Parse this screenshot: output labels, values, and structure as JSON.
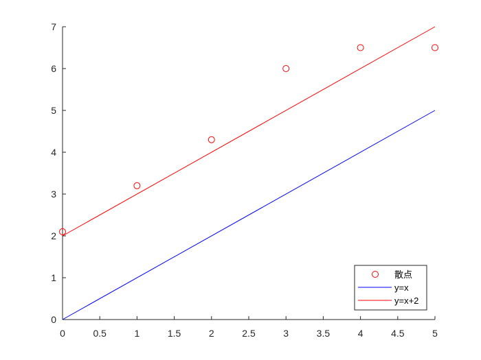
{
  "chart_data": {
    "type": "line",
    "title": "",
    "xlabel": "",
    "ylabel": "",
    "xlim": [
      0,
      5
    ],
    "ylim": [
      0,
      7
    ],
    "x_ticks": [
      "0",
      "0.5",
      "1",
      "1.5",
      "2",
      "2.5",
      "3",
      "3.5",
      "4",
      "4.5",
      "5"
    ],
    "y_ticks": [
      "0",
      "1",
      "2",
      "3",
      "4",
      "5",
      "6",
      "7"
    ],
    "grid": false,
    "legend_placement": "bottom-right",
    "series": [
      {
        "name": "散点",
        "kind": "scatter",
        "marker": "circle",
        "color": "#ff0000",
        "x": [
          0,
          1,
          2,
          3,
          4,
          5
        ],
        "y": [
          2.1,
          3.2,
          4.3,
          6.0,
          6.5,
          6.5
        ]
      },
      {
        "name": "y=x",
        "kind": "line",
        "color": "#0000ff",
        "x": [
          0,
          5
        ],
        "y": [
          0,
          5
        ]
      },
      {
        "name": "y=x+2",
        "kind": "line",
        "color": "#ff0000",
        "x": [
          0,
          5
        ],
        "y": [
          2,
          7
        ]
      }
    ]
  }
}
